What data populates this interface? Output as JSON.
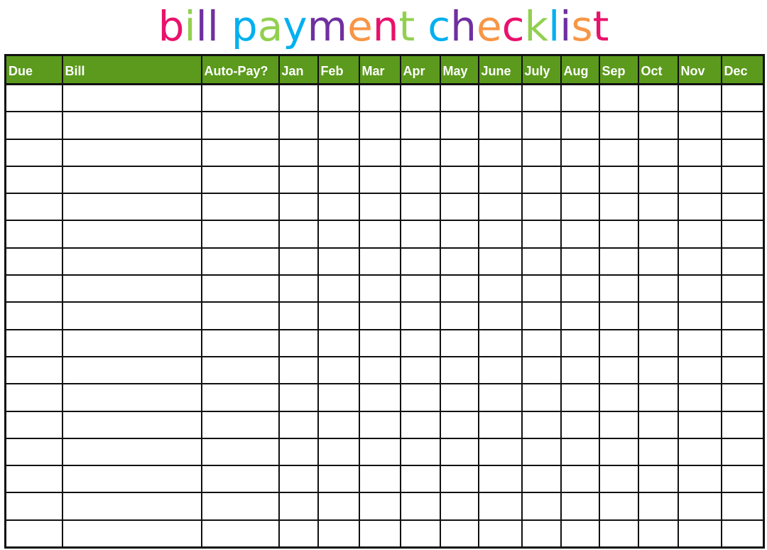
{
  "title": {
    "text": "bill payment checklist",
    "letters": [
      {
        "ch": "b",
        "color": "#e8126b"
      },
      {
        "ch": "i",
        "color": "#92d050"
      },
      {
        "ch": "l",
        "color": "#7030a0"
      },
      {
        "ch": "l",
        "color": "#7030a0"
      },
      {
        "ch": " ",
        "color": "#000000"
      },
      {
        "ch": "p",
        "color": "#00b0f0"
      },
      {
        "ch": "a",
        "color": "#92d050"
      },
      {
        "ch": "y",
        "color": "#00b0f0"
      },
      {
        "ch": "m",
        "color": "#7030a0"
      },
      {
        "ch": "e",
        "color": "#f79646"
      },
      {
        "ch": "n",
        "color": "#e8126b"
      },
      {
        "ch": "t",
        "color": "#92d050"
      },
      {
        "ch": " ",
        "color": "#000000"
      },
      {
        "ch": "c",
        "color": "#00b0f0"
      },
      {
        "ch": "h",
        "color": "#7030a0"
      },
      {
        "ch": "e",
        "color": "#f79646"
      },
      {
        "ch": "c",
        "color": "#e8126b"
      },
      {
        "ch": "k",
        "color": "#92d050"
      },
      {
        "ch": "l",
        "color": "#00b0f0"
      },
      {
        "ch": "i",
        "color": "#7030a0"
      },
      {
        "ch": "s",
        "color": "#f79646"
      },
      {
        "ch": "t",
        "color": "#e8126b"
      }
    ]
  },
  "header_color": "#5b9a1c",
  "columns": [
    "Due",
    "Bill",
    "Auto-Pay?",
    "Jan",
    "Feb",
    "Mar",
    "Apr",
    "May",
    "June",
    "July",
    "Aug",
    "Sep",
    "Oct",
    "Nov",
    "Dec"
  ],
  "rows": [
    [
      "",
      "",
      "",
      "",
      "",
      "",
      "",
      "",
      "",
      "",
      "",
      "",
      "",
      "",
      ""
    ],
    [
      "",
      "",
      "",
      "",
      "",
      "",
      "",
      "",
      "",
      "",
      "",
      "",
      "",
      "",
      ""
    ],
    [
      "",
      "",
      "",
      "",
      "",
      "",
      "",
      "",
      "",
      "",
      "",
      "",
      "",
      "",
      ""
    ],
    [
      "",
      "",
      "",
      "",
      "",
      "",
      "",
      "",
      "",
      "",
      "",
      "",
      "",
      "",
      ""
    ],
    [
      "",
      "",
      "",
      "",
      "",
      "",
      "",
      "",
      "",
      "",
      "",
      "",
      "",
      "",
      ""
    ],
    [
      "",
      "",
      "",
      "",
      "",
      "",
      "",
      "",
      "",
      "",
      "",
      "",
      "",
      "",
      ""
    ],
    [
      "",
      "",
      "",
      "",
      "",
      "",
      "",
      "",
      "",
      "",
      "",
      "",
      "",
      "",
      ""
    ],
    [
      "",
      "",
      "",
      "",
      "",
      "",
      "",
      "",
      "",
      "",
      "",
      "",
      "",
      "",
      ""
    ],
    [
      "",
      "",
      "",
      "",
      "",
      "",
      "",
      "",
      "",
      "",
      "",
      "",
      "",
      "",
      ""
    ],
    [
      "",
      "",
      "",
      "",
      "",
      "",
      "",
      "",
      "",
      "",
      "",
      "",
      "",
      "",
      ""
    ],
    [
      "",
      "",
      "",
      "",
      "",
      "",
      "",
      "",
      "",
      "",
      "",
      "",
      "",
      "",
      ""
    ],
    [
      "",
      "",
      "",
      "",
      "",
      "",
      "",
      "",
      "",
      "",
      "",
      "",
      "",
      "",
      ""
    ],
    [
      "",
      "",
      "",
      "",
      "",
      "",
      "",
      "",
      "",
      "",
      "",
      "",
      "",
      "",
      ""
    ],
    [
      "",
      "",
      "",
      "",
      "",
      "",
      "",
      "",
      "",
      "",
      "",
      "",
      "",
      "",
      ""
    ],
    [
      "",
      "",
      "",
      "",
      "",
      "",
      "",
      "",
      "",
      "",
      "",
      "",
      "",
      "",
      ""
    ],
    [
      "",
      "",
      "",
      "",
      "",
      "",
      "",
      "",
      "",
      "",
      "",
      "",
      "",
      "",
      ""
    ],
    [
      "",
      "",
      "",
      "",
      "",
      "",
      "",
      "",
      "",
      "",
      "",
      "",
      "",
      "",
      ""
    ]
  ]
}
